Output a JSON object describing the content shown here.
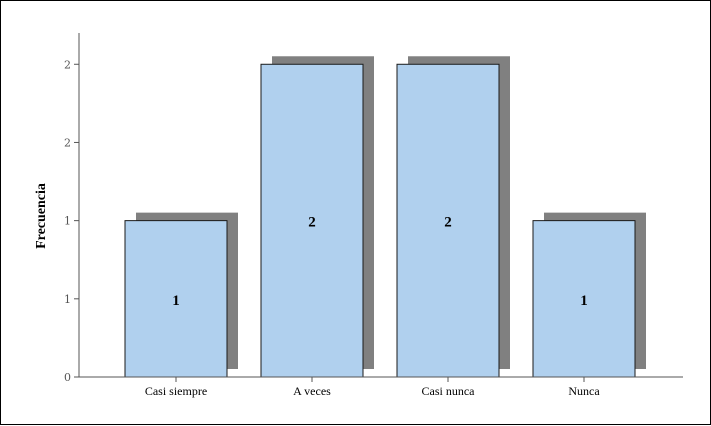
{
  "chart_data": {
    "type": "bar",
    "categories": [
      "Casi siempre",
      "A veces",
      "Casi nunca",
      "Nunca"
    ],
    "values": [
      1,
      2,
      2,
      1
    ],
    "data_labels": [
      "1",
      "2",
      "2",
      "1"
    ],
    "ylabel": "Frecuencia",
    "xlabel": "",
    "title": "",
    "ylim": [
      0,
      2.2
    ],
    "y_tick_values": [
      0,
      0.5,
      1,
      1.5,
      2
    ],
    "y_tick_labels": [
      "0",
      "1",
      "1",
      "2",
      "2"
    ],
    "grid": false,
    "legend": "none",
    "colors": {
      "bar_fill": "#b0d0ee",
      "bar_stroke": "#1a1a1a",
      "shadow": "#808080",
      "axis": "#555555"
    }
  }
}
